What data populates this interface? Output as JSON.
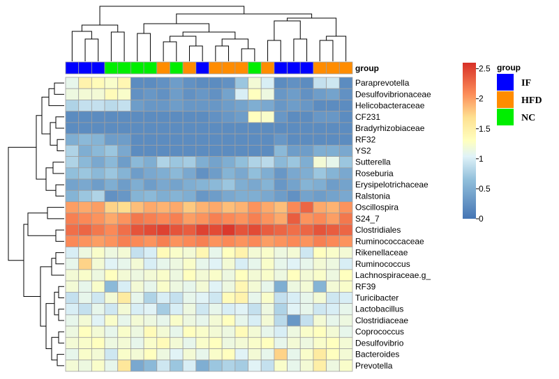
{
  "chart_data": {
    "type": "heatmap",
    "group_label": "group",
    "colorbar": {
      "min": 0,
      "max": 2.6,
      "ticks": [
        "0",
        "0.5",
        "1",
        "1.5",
        "2",
        "2.5"
      ]
    },
    "legend": {
      "title": "group",
      "items": [
        {
          "name": "IF",
          "color": "#0000ff"
        },
        {
          "name": "HFD",
          "color": "#ff8c00"
        },
        {
          "name": "NC",
          "color": "#00ee00"
        }
      ]
    },
    "colors": {
      "low": "#4575b4",
      "mid": "#ffffbf",
      "high": "#d73027",
      "cell_border": "#a0a0a0"
    },
    "columns": [
      "IF",
      "IF",
      "IF",
      "NC",
      "NC",
      "NC",
      "NC",
      "HFD",
      "NC",
      "HFD",
      "IF",
      "HFD",
      "HFD",
      "HFD",
      "NC",
      "HFD",
      "IF",
      "IF",
      "IF",
      "HFD",
      "HFD",
      "HFD"
    ],
    "rows": [
      "Paraprevotella",
      "Desulfovibrionaceae",
      "Helicobacteraceae",
      "CF231",
      "Bradyrhizobiaceae",
      "RF32",
      "YS2",
      "Sutterella",
      "Roseburia",
      "Erysipelotrichaceae",
      "Ralstonia",
      "Oscillospira",
      "S24_7",
      "Clostridiales",
      "Ruminococcaceae",
      "Rikenellaceae",
      "Ruminococcus",
      "Lachnospiraceae.g_",
      "RF39",
      "Turicibacter",
      "Lactobacillus",
      "Clostridiaceae",
      "Coprococcus",
      "Desulfovibrio",
      "Bacteroides",
      "Prevotella"
    ],
    "values": [
      [
        1.1,
        1.45,
        1.35,
        1.25,
        1.4,
        0.2,
        0.2,
        0.25,
        0.35,
        0.25,
        0.2,
        0.2,
        0.25,
        0.7,
        1.2,
        1.0,
        0.2,
        0.25,
        0.2,
        0.9,
        0.95,
        0.2
      ],
      [
        1.15,
        1.2,
        1.2,
        1.35,
        1.25,
        0.25,
        0.3,
        0.25,
        0.35,
        0.25,
        0.3,
        0.25,
        0.4,
        1.0,
        1.3,
        1.15,
        0.3,
        0.35,
        0.25,
        0.35,
        0.4,
        0.25
      ],
      [
        0.8,
        0.9,
        0.9,
        0.85,
        0.9,
        0.35,
        0.3,
        0.3,
        0.35,
        0.3,
        0.3,
        0.3,
        0.35,
        0.4,
        0.5,
        0.45,
        0.3,
        0.35,
        0.3,
        0.2,
        0.2,
        0.2
      ],
      [
        0.2,
        0.2,
        0.2,
        0.2,
        0.2,
        0.2,
        0.2,
        0.2,
        0.2,
        0.2,
        0.2,
        0.25,
        0.3,
        0.35,
        1.3,
        1.25,
        0.3,
        0.2,
        0.2,
        0.3,
        0.3,
        0.2
      ],
      [
        0.2,
        0.2,
        0.2,
        0.2,
        0.2,
        0.2,
        0.2,
        0.2,
        0.2,
        0.2,
        0.2,
        0.2,
        0.2,
        0.2,
        0.2,
        0.2,
        0.2,
        0.2,
        0.2,
        0.2,
        0.2,
        0.2
      ],
      [
        0.5,
        0.6,
        0.55,
        0.35,
        0.35,
        0.2,
        0.2,
        0.2,
        0.2,
        0.2,
        0.2,
        0.2,
        0.2,
        0.2,
        0.2,
        0.2,
        0.3,
        0.2,
        0.2,
        0.2,
        0.2,
        0.2
      ],
      [
        0.8,
        0.5,
        0.6,
        0.7,
        0.45,
        0.2,
        0.2,
        0.2,
        0.2,
        0.2,
        0.2,
        0.2,
        0.2,
        0.2,
        0.2,
        0.2,
        0.6,
        0.35,
        0.35,
        0.5,
        0.5,
        0.45
      ],
      [
        0.8,
        0.6,
        0.45,
        0.6,
        0.35,
        0.6,
        0.5,
        0.8,
        0.7,
        0.75,
        0.5,
        0.4,
        0.5,
        0.65,
        0.8,
        0.85,
        0.6,
        0.7,
        0.5,
        1.2,
        1.1,
        0.7
      ],
      [
        0.65,
        0.7,
        0.6,
        0.7,
        0.55,
        0.35,
        0.45,
        0.5,
        0.6,
        0.45,
        0.25,
        0.35,
        0.55,
        0.45,
        0.65,
        0.5,
        0.3,
        0.45,
        0.5,
        0.7,
        0.55,
        0.45
      ],
      [
        0.4,
        0.45,
        0.35,
        0.5,
        0.35,
        0.5,
        0.35,
        0.45,
        0.4,
        0.5,
        0.55,
        0.6,
        0.7,
        0.5,
        0.45,
        0.55,
        0.3,
        0.4,
        0.55,
        0.5,
        0.35,
        0.4
      ],
      [
        0.55,
        0.7,
        0.8,
        0.25,
        0.3,
        0.55,
        0.6,
        0.5,
        0.55,
        0.5,
        0.3,
        0.35,
        0.45,
        0.5,
        0.5,
        0.45,
        0.35,
        0.25,
        0.4,
        0.35,
        0.4,
        0.45
      ],
      [
        2.0,
        1.95,
        2.0,
        1.75,
        1.7,
        1.85,
        1.95,
        1.9,
        1.95,
        1.8,
        1.9,
        1.95,
        1.85,
        1.9,
        2.05,
        1.95,
        1.85,
        2.1,
        2.3,
        1.95,
        1.9,
        2.05
      ],
      [
        2.15,
        2.1,
        2.05,
        1.95,
        2.05,
        2.2,
        2.15,
        2.1,
        2.15,
        2.0,
        2.05,
        2.15,
        2.1,
        2.05,
        2.15,
        2.05,
        1.95,
        2.35,
        2.05,
        2.1,
        2.0,
        2.2
      ],
      [
        2.25,
        2.3,
        2.2,
        2.1,
        2.25,
        2.4,
        2.45,
        2.5,
        2.4,
        2.35,
        2.5,
        2.45,
        2.55,
        2.4,
        2.45,
        2.35,
        2.3,
        2.25,
        2.3,
        2.4,
        2.35,
        2.3
      ],
      [
        2.1,
        2.05,
        2.0,
        2.05,
        2.15,
        2.1,
        2.05,
        2.15,
        2.05,
        2.1,
        2.15,
        2.05,
        2.1,
        2.05,
        2.1,
        2.0,
        2.05,
        2.1,
        2.05,
        2.15,
        2.1,
        2.05
      ],
      [
        1.0,
        1.15,
        1.25,
        1.15,
        1.2,
        0.9,
        1.0,
        1.35,
        1.25,
        1.2,
        1.4,
        1.1,
        1.3,
        1.45,
        1.2,
        1.25,
        1.15,
        1.2,
        0.95,
        1.3,
        1.25,
        1.2
      ],
      [
        1.1,
        1.75,
        1.2,
        1.05,
        1.1,
        1.2,
        1.0,
        1.1,
        1.15,
        1.25,
        1.1,
        1.05,
        1.2,
        1.0,
        1.1,
        1.25,
        1.1,
        1.05,
        1.1,
        1.2,
        1.15,
        1.0
      ],
      [
        1.2,
        1.25,
        1.15,
        1.3,
        1.2,
        1.15,
        1.2,
        1.25,
        1.15,
        1.3,
        1.2,
        1.25,
        1.15,
        1.3,
        1.2,
        1.25,
        1.15,
        1.3,
        1.2,
        1.25,
        1.15,
        1.3
      ],
      [
        1.2,
        1.1,
        1.25,
        0.6,
        1.0,
        1.2,
        1.1,
        1.25,
        1.15,
        1.1,
        1.2,
        1.05,
        1.15,
        1.4,
        1.2,
        1.1,
        0.5,
        1.15,
        1.2,
        0.55,
        1.2,
        1.25
      ],
      [
        0.9,
        1.1,
        0.95,
        1.2,
        1.55,
        1.1,
        0.8,
        1.0,
        0.9,
        1.1,
        1.05,
        0.95,
        1.35,
        1.45,
        1.1,
        1.25,
        0.9,
        1.0,
        1.1,
        1.2,
        0.95,
        1.0
      ],
      [
        1.0,
        0.9,
        1.1,
        0.95,
        1.2,
        1.0,
        1.05,
        0.75,
        1.0,
        1.15,
        0.95,
        1.1,
        1.0,
        1.05,
        0.9,
        1.15,
        0.8,
        1.05,
        1.1,
        0.95,
        1.0,
        1.1
      ],
      [
        1.1,
        1.2,
        1.05,
        1.25,
        1.1,
        1.2,
        1.15,
        1.1,
        1.25,
        1.15,
        1.1,
        1.2,
        1.3,
        1.1,
        1.0,
        1.2,
        0.85,
        0.3,
        0.9,
        1.2,
        1.1,
        1.15
      ],
      [
        1.15,
        1.3,
        1.2,
        1.1,
        1.25,
        1.15,
        1.35,
        1.2,
        1.1,
        1.3,
        1.25,
        1.2,
        1.15,
        1.35,
        1.2,
        1.1,
        1.0,
        1.15,
        1.25,
        1.3,
        1.2,
        1.1
      ],
      [
        1.2,
        1.25,
        1.3,
        1.15,
        1.2,
        1.1,
        1.25,
        1.35,
        1.2,
        1.1,
        1.25,
        1.3,
        1.15,
        1.2,
        1.25,
        1.3,
        1.1,
        1.2,
        1.15,
        1.25,
        1.3,
        1.2
      ],
      [
        1.1,
        1.25,
        1.2,
        0.95,
        1.25,
        1.2,
        1.3,
        1.15,
        1.05,
        1.2,
        1.1,
        1.25,
        1.3,
        1.05,
        1.2,
        1.1,
        1.75,
        1.1,
        1.25,
        1.55,
        1.3,
        1.2
      ],
      [
        1.2,
        1.15,
        1.25,
        1.1,
        1.6,
        0.45,
        0.6,
        0.95,
        0.7,
        1.0,
        0.5,
        0.7,
        0.8,
        0.75,
        1.05,
        0.9,
        1.25,
        1.1,
        1.2,
        1.5,
        1.15,
        1.25
      ]
    ]
  }
}
